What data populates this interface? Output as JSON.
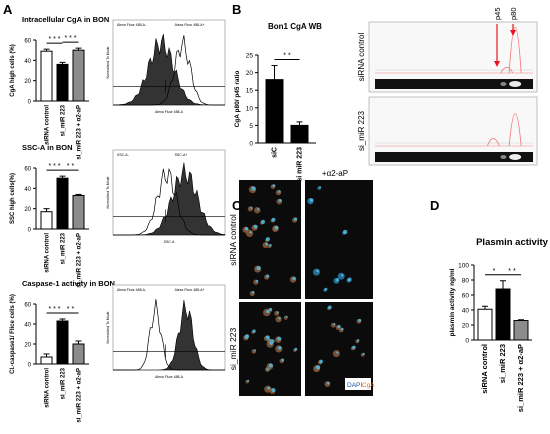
{
  "panels": {
    "A": "A",
    "B": "B",
    "C": "C",
    "D": "D"
  },
  "panelA": {
    "charts": [
      {
        "title": "Intracellular CgA in BON",
        "ylabel": "CgA high cells (%)",
        "y_ticks": [
          "0",
          "20",
          "40",
          "60"
        ],
        "ylim": [
          0,
          60
        ],
        "categories": [
          "siRNA control",
          "si_miR 223",
          "si_miR 223 + α2-aP"
        ],
        "values": [
          49,
          36,
          50
        ],
        "errors": [
          2,
          2,
          2
        ],
        "sig": [
          "* * *",
          "* * *"
        ],
        "flow_legend": [
          "Alexa Fluor 488-A-",
          "Alexa Fluor 488-A+"
        ],
        "flow_xlabel": "Alexa Fluor 488-A",
        "flow_ylabel": "Normalized To Mode"
      },
      {
        "title": "SSC-A in BON",
        "ylabel": "SSC high cells(%)",
        "y_ticks": [
          "0",
          "20",
          "40",
          "60"
        ],
        "ylim": [
          0,
          60
        ],
        "categories": [
          "siRNA control",
          "si_miR 223",
          "si_miR 223 + α2-aP"
        ],
        "values": [
          17,
          50,
          33
        ],
        "errors": [
          3,
          2,
          1
        ],
        "sig": [
          "* * *",
          "* *"
        ],
        "flow_legend": [
          "SSC-A-",
          "SSC-A+"
        ],
        "flow_xlabel": "SSC-A",
        "flow_ylabel": "Normalized To Mode"
      },
      {
        "title": "Caspase-1 activity in BON",
        "ylabel": "Cl.-caspase1/ Flice cells (%)",
        "y_ticks": [
          "0",
          "20",
          "40",
          "60"
        ],
        "ylim": [
          0,
          60
        ],
        "categories": [
          "siRNA control",
          "si_miR 223",
          "si_miR 223 + α2-aP"
        ],
        "values": [
          7,
          43,
          20
        ],
        "errors": [
          3,
          2,
          3
        ],
        "sig": [
          "* * *",
          "* *"
        ],
        "flow_legend": [
          "Alexa Fluor 488-A-",
          "Alexa Fluor 488-A+"
        ],
        "flow_xlabel": "Alexa Fluor 488-A",
        "flow_ylabel": "Normalized To Mode"
      }
    ]
  },
  "panelB": {
    "title": "Bon1 CgA WB",
    "ylabel": "CgA p80/ p45 ratio",
    "y_ticks": [
      "0",
      "5",
      "10",
      "15",
      "20",
      "25"
    ],
    "ylim": [
      0,
      25
    ],
    "categories": [
      "siC",
      "si miR 223"
    ],
    "values": [
      18,
      5
    ],
    "errors": [
      4,
      1
    ],
    "sig": "* *",
    "blot_labels": [
      "siRNA control",
      "si_miR 223"
    ],
    "markers": [
      "p45",
      "p80"
    ]
  },
  "panelC": {
    "col_label": "+α2-aP",
    "row_labels": [
      "siRNA control",
      "si_miR 223"
    ],
    "legend": [
      "DAPI",
      "CgA"
    ]
  },
  "panelD": {
    "title": "Plasmin activity",
    "ylabel": "plasmin activity ng/ml",
    "y_ticks": [
      "0",
      "20",
      "40",
      "60",
      "80",
      "100"
    ],
    "ylim": [
      0,
      100
    ],
    "categories": [
      "siRNA control",
      "si_miR 223",
      "si_miR 223 + α2-aP"
    ],
    "values": [
      41,
      68,
      26
    ],
    "errors": [
      4,
      11,
      1
    ],
    "sig": [
      "*",
      "* *"
    ]
  },
  "colors": {
    "white_bar": "#ffffff",
    "black_bar": "#000000",
    "gray_bar": "#8c8c8c",
    "arrow": "#e8141c",
    "trace": "#f08080"
  },
  "chart_data": [
    {
      "type": "bar",
      "title": "Intracellular CgA in BON",
      "ylabel": "CgA high cells (%)",
      "categories": [
        "siRNA control",
        "si_miR 223",
        "si_miR 223 + α2-aP"
      ],
      "values": [
        49,
        36,
        50
      ],
      "ylim": [
        0,
        60
      ]
    },
    {
      "type": "bar",
      "title": "SSC-A in BON",
      "ylabel": "SSC high cells(%)",
      "categories": [
        "siRNA control",
        "si_miR 223",
        "si_miR 223 + α2-aP"
      ],
      "values": [
        17,
        50,
        33
      ],
      "ylim": [
        0,
        60
      ]
    },
    {
      "type": "bar",
      "title": "Caspase-1 activity in BON",
      "ylabel": "Cl.-caspase1/ Flice cells (%)",
      "categories": [
        "siRNA control",
        "si_miR 223",
        "si_miR 223 + α2-aP"
      ],
      "values": [
        7,
        43,
        20
      ],
      "ylim": [
        0,
        60
      ]
    },
    {
      "type": "bar",
      "title": "Bon1 CgA WB",
      "ylabel": "CgA p80/ p45 ratio",
      "categories": [
        "siC",
        "si miR 223"
      ],
      "values": [
        18,
        5
      ],
      "ylim": [
        0,
        25
      ]
    },
    {
      "type": "bar",
      "title": "Plasmin activity",
      "ylabel": "plasmin activity ng/ml",
      "categories": [
        "siRNA control",
        "si_miR 223",
        "si_miR 223 + α2-aP"
      ],
      "values": [
        41,
        68,
        26
      ],
      "ylim": [
        0,
        100
      ]
    }
  ]
}
